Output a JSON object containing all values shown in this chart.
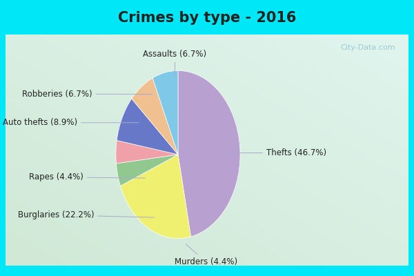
{
  "title": "Crimes by type - 2016",
  "labels": [
    "Thefts",
    "Burglaries",
    "Murders",
    "Rapes",
    "Auto thefts",
    "Robberies",
    "Assaults"
  ],
  "values": [
    46.7,
    22.2,
    4.4,
    4.4,
    8.9,
    6.7,
    6.7
  ],
  "colors": [
    "#b8a0d0",
    "#f0f070",
    "#90c890",
    "#f0a0a8",
    "#6878c8",
    "#f0c090",
    "#80c8e8"
  ],
  "background_cyan": "#00e8f8",
  "background_grad_topleft": "#e0f5ee",
  "background_grad_botright": "#c5e8d5",
  "title_fontsize": 15,
  "label_fontsize": 8.5,
  "startangle": 90,
  "watermark": "City-Data.com"
}
